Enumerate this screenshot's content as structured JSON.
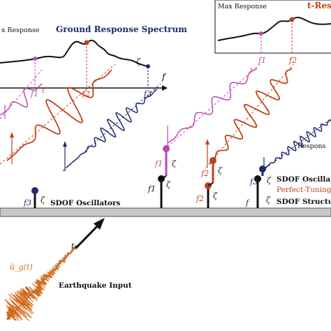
{
  "left_panel": {
    "title": "Ground Response Spectrum",
    "ylabel": "x Response",
    "xlabel": "f",
    "zeta": "ζ",
    "freq_labels": [
      "f1",
      "f2",
      "f3"
    ]
  },
  "right_panel": {
    "title": "t-Res",
    "ylabel": "Max Response",
    "freq_labels": [
      "f1",
      "f2"
    ]
  },
  "labels": {
    "sdof_oscillators": "SDOF Oscillators",
    "sdof_oscillators_right": "SDOF Oscilla",
    "perfect_tuning": "Perfect-Tuning",
    "sdof_structure": "SDOF Structu",
    "response": "Respons",
    "earthquake_input": "Earthquake Input",
    "input_symbol": "ü_g(t)",
    "time_symbol": "t",
    "zeta": "ζ"
  },
  "oscillators_left": [
    {
      "label": "f3",
      "zeta": "ζ",
      "color": "#1f2a6b"
    }
  ],
  "oscillators_right": [
    {
      "label": "f1",
      "zeta": "ζ",
      "color": "#b84bb0"
    },
    {
      "label": "f2",
      "zeta": "ζ",
      "color": "#c2411a"
    },
    {
      "label": "f3",
      "zeta": "ζ",
      "color": "#1f2a6b"
    }
  ],
  "colors": {
    "f1": "#b84bb0",
    "f2": "#c2411a",
    "f3": "#1f2a6b",
    "quake": "#d2691e",
    "ground": "#b8b8b8"
  }
}
